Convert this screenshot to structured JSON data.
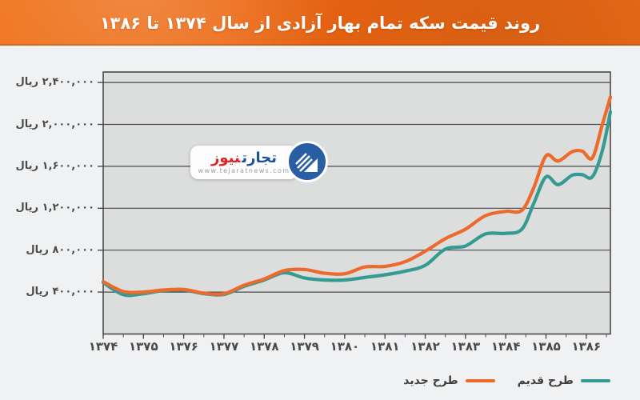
{
  "banner": {
    "title": "روند قیمت سکه تمام بهار آزادی از سال ۱۳۷۴ تا ۱۳۸۶"
  },
  "watermark": {
    "brand_blue": "تجارت",
    "brand_red": "نیوز",
    "url": "www.tejaratnews.com"
  },
  "chart_data": {
    "type": "line",
    "title": "روند قیمت سکه تمام بهار آزادی از سال ۱۳۷۴ تا ۱۳۸۶",
    "y_unit": "ریال",
    "xlim": [
      1374,
      1386.6
    ],
    "ylim": [
      0,
      2500000
    ],
    "grid": "horizontal",
    "legend_position": "bottom-right",
    "plot_background": "#dcdddd",
    "grid_color": "#4a4a4a",
    "y_ticks": [
      {
        "value": 2400000,
        "label": "۲,۴۰۰,۰۰۰ ریال"
      },
      {
        "value": 2000000,
        "label": "۲,۰۰۰,۰۰۰ ریال"
      },
      {
        "value": 1600000,
        "label": "۱,۶۰۰,۰۰۰ ریال"
      },
      {
        "value": 1200000,
        "label": "۱,۲۰۰,۰۰۰ ریال"
      },
      {
        "value": 800000,
        "label": "۸۰۰,۰۰۰ ریال"
      },
      {
        "value": 400000,
        "label": "۴۰۰,۰۰۰ ریال"
      }
    ],
    "x_ticks": [
      {
        "value": 1374,
        "label": "۱۳۷۴"
      },
      {
        "value": 1375,
        "label": "۱۳۷۵"
      },
      {
        "value": 1376,
        "label": "۱۳۷۶"
      },
      {
        "value": 1377,
        "label": "۱۳۷۷"
      },
      {
        "value": 1378,
        "label": "۱۳۷۸"
      },
      {
        "value": 1379,
        "label": "۱۳۷۹"
      },
      {
        "value": 1380,
        "label": "۱۳۸۰"
      },
      {
        "value": 1381,
        "label": "۱۳۸۱"
      },
      {
        "value": 1382,
        "label": "۱۳۸۲"
      },
      {
        "value": 1383,
        "label": "۱۳۸۳"
      },
      {
        "value": 1384,
        "label": "۱۳۸۴"
      },
      {
        "value": 1385,
        "label": "۱۳۸۵"
      },
      {
        "value": 1386,
        "label": "۱۳۸۶"
      }
    ],
    "x_minor_step": 0.5,
    "series": [
      {
        "name": "طرح قدیم",
        "color": "#359a92",
        "x": [
          1374,
          1374.5,
          1375,
          1375.5,
          1376,
          1376.5,
          1377,
          1377.5,
          1378,
          1378.5,
          1379,
          1379.5,
          1380,
          1380.5,
          1381,
          1381.5,
          1382,
          1382.5,
          1383,
          1383.5,
          1384,
          1384.4,
          1384.7,
          1385,
          1385.3,
          1385.65,
          1385.9,
          1386.15,
          1386.4,
          1386.6
        ],
        "values": [
          490000,
          375000,
          385000,
          415000,
          420000,
          385000,
          378000,
          455000,
          515000,
          585000,
          535000,
          515000,
          515000,
          540000,
          565000,
          600000,
          655000,
          810000,
          840000,
          955000,
          960000,
          1000000,
          1250000,
          1500000,
          1425000,
          1515000,
          1520000,
          1500000,
          1750000,
          2120000
        ]
      },
      {
        "name": "طرح جدید",
        "color": "#ec6a2b",
        "x": [
          1374,
          1374.5,
          1375,
          1375.5,
          1376,
          1376.5,
          1377,
          1377.5,
          1378,
          1378.5,
          1379,
          1379.5,
          1380,
          1380.5,
          1381,
          1381.5,
          1382,
          1382.5,
          1383,
          1383.5,
          1384,
          1384.4,
          1384.7,
          1385,
          1385.3,
          1385.65,
          1385.9,
          1386.15,
          1386.4,
          1386.6
        ],
        "values": [
          500000,
          405000,
          400000,
          420000,
          425000,
          390000,
          385000,
          465000,
          525000,
          605000,
          615000,
          580000,
          575000,
          640000,
          645000,
          690000,
          790000,
          910000,
          1000000,
          1130000,
          1170000,
          1180000,
          1400000,
          1700000,
          1650000,
          1740000,
          1745000,
          1680000,
          2000000,
          2260000
        ]
      }
    ]
  }
}
